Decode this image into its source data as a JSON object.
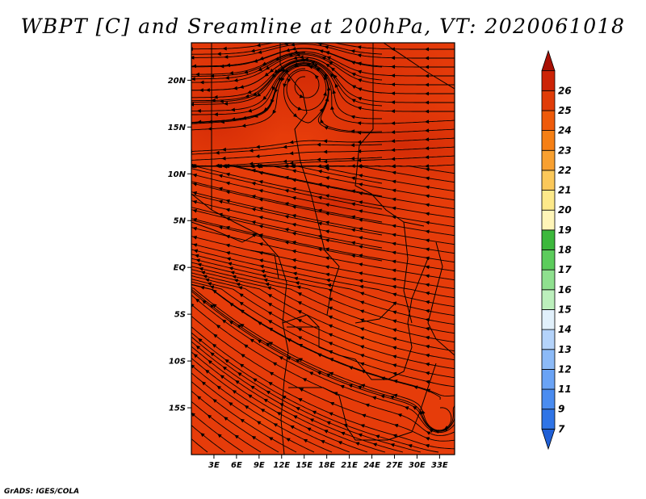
{
  "title": "WBPT [C] and Sreamline at 200hPa, VT: 2020061018",
  "credit": "GrADS: IGES/COLA",
  "map": {
    "lon_range": [
      0,
      35
    ],
    "lat_range": [
      -20,
      24
    ],
    "lat_labels": [
      {
        "lat": 20,
        "text": "20N"
      },
      {
        "lat": 15,
        "text": "15N"
      },
      {
        "lat": 10,
        "text": "10N"
      },
      {
        "lat": 5,
        "text": "5N"
      },
      {
        "lat": 0,
        "text": "EQ"
      },
      {
        "lat": -5,
        "text": "5S"
      },
      {
        "lat": -10,
        "text": "10S"
      },
      {
        "lat": -15,
        "text": "15S"
      }
    ],
    "lon_labels": [
      {
        "lon": 3,
        "text": "3E"
      },
      {
        "lon": 6,
        "text": "6E"
      },
      {
        "lon": 9,
        "text": "9E"
      },
      {
        "lon": 12,
        "text": "12E"
      },
      {
        "lon": 15,
        "text": "15E"
      },
      {
        "lon": 18,
        "text": "18E"
      },
      {
        "lon": 21,
        "text": "21E"
      },
      {
        "lon": 24,
        "text": "24E"
      },
      {
        "lon": 27,
        "text": "27E"
      },
      {
        "lon": 30,
        "text": "30E"
      },
      {
        "lon": 33,
        "text": "33E"
      }
    ]
  },
  "colorbar": {
    "levels": [
      "7",
      "9",
      "11",
      "12",
      "13",
      "14",
      "15",
      "16",
      "17",
      "18",
      "19",
      "20",
      "21",
      "22",
      "23",
      "24",
      "25",
      "26"
    ],
    "colors": [
      "#1f5fd6",
      "#2f74e6",
      "#4a8cf0",
      "#6aa3f5",
      "#8cbaf7",
      "#b4d3fa",
      "#e1f0fb",
      "#bcefbc",
      "#8fe08f",
      "#5ccc5c",
      "#3cb83c",
      "#fff5b8",
      "#fde98a",
      "#fbc85a",
      "#f8a030",
      "#f57f14",
      "#ee5a0a",
      "#e03c08",
      "#cc2306",
      "#a81004"
    ]
  }
}
